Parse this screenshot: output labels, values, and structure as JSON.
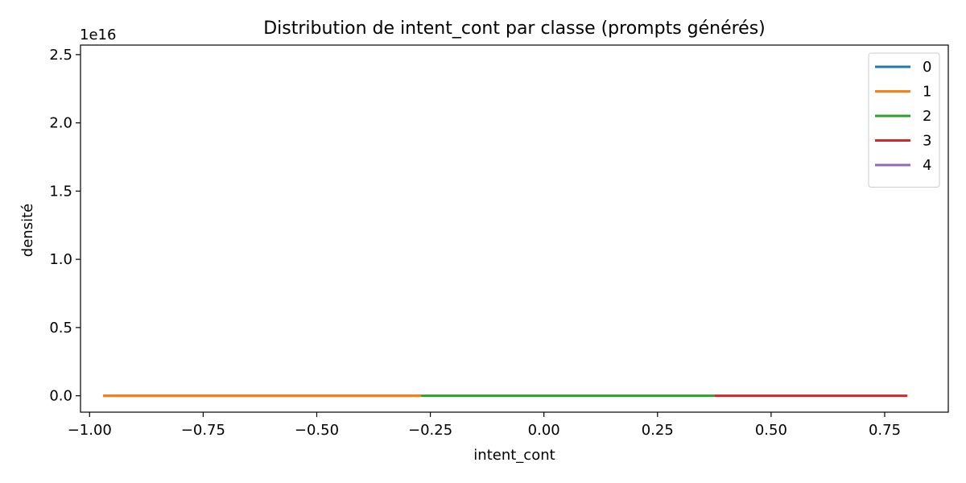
{
  "chart_data": {
    "type": "line",
    "title": "Distribution de intent_cont par classe (prompts générés)",
    "xlabel": "intent_cont",
    "ylabel": "densité",
    "y_offset_label": "1e16",
    "y_scale_factor": 1e+16,
    "xlim": [
      -1.02,
      0.89
    ],
    "ylim": [
      -0.12,
      2.57
    ],
    "x_ticks": [
      -1.0,
      -0.75,
      -0.5,
      -0.25,
      0.0,
      0.25,
      0.5,
      0.75
    ],
    "x_tick_labels": [
      "−1.00",
      "−0.75",
      "−0.50",
      "−0.25",
      "0.00",
      "0.25",
      "0.50",
      "0.75"
    ],
    "y_ticks": [
      0.0,
      0.5,
      1.0,
      1.5,
      2.0,
      2.5
    ],
    "y_tick_labels": [
      "0.0",
      "0.5",
      "1.0",
      "1.5",
      "2.0",
      "2.5"
    ],
    "grid": false,
    "legend_position": "top-right",
    "series": [
      {
        "name": "0",
        "color": "#1f77b4",
        "x": [
          -0.97,
          -0.27
        ],
        "y": [
          0,
          0
        ]
      },
      {
        "name": "1",
        "color": "#ff7f0e",
        "x": [
          -0.97,
          -0.27
        ],
        "y": [
          0,
          0
        ]
      },
      {
        "name": "2",
        "color": "#2ca02c",
        "x": [
          -0.27,
          0.375
        ],
        "y": [
          0,
          0
        ]
      },
      {
        "name": "3",
        "color": "#d62728",
        "x": [
          0.375,
          0.8
        ],
        "y": [
          0,
          0
        ]
      },
      {
        "name": "4",
        "color": "#9467bd",
        "x": [
          0.8,
          0.8
        ],
        "y": [
          0,
          0
        ]
      }
    ]
  }
}
